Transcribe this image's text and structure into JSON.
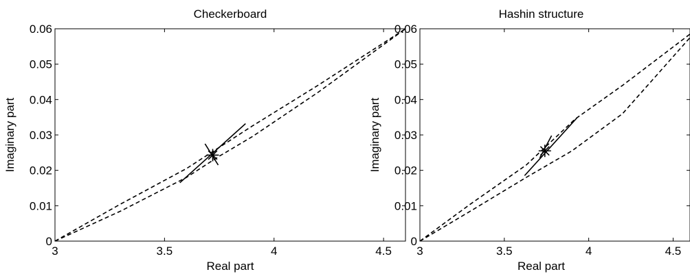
{
  "chart_data": [
    {
      "type": "line",
      "title": "Checkerboard",
      "xlabel": "Real part",
      "ylabel": "Imaginary part",
      "xlim": [
        3,
        4.6
      ],
      "ylim": [
        0,
        0.06
      ],
      "xticks": [
        "3",
        "3.5",
        "4",
        "4.5"
      ],
      "yticks": [
        "0",
        "0.01",
        "0.02",
        "0.03",
        "0.04",
        "0.05",
        "0.06"
      ],
      "grid": false,
      "series": [
        {
          "style": "dashed",
          "x": [
            3.0,
            3.3,
            3.6,
            3.75,
            3.9,
            4.2,
            4.6
          ],
          "y": [
            0.0,
            0.0085,
            0.018,
            0.024,
            0.0295,
            0.042,
            0.06
          ]
        },
        {
          "style": "dashed",
          "x": [
            3.0,
            3.3,
            3.6,
            3.75,
            3.9,
            4.2,
            4.6
          ],
          "y": [
            0.0,
            0.0105,
            0.0205,
            0.0265,
            0.0325,
            0.044,
            0.06
          ]
        },
        {
          "style": "solid",
          "x": [
            3.57,
            3.87
          ],
          "y": [
            0.0165,
            0.0332
          ]
        },
        {
          "style": "solid",
          "x": [
            3.685,
            3.745
          ],
          "y": [
            0.0275,
            0.0215
          ]
        }
      ],
      "marker": {
        "symbol": "asterisk",
        "x": 3.72,
        "y": 0.0243
      }
    },
    {
      "type": "line",
      "title": "Hashin structure",
      "xlabel": "Real part",
      "ylabel": "Imaginary part",
      "xlim": [
        3,
        4.6
      ],
      "ylim": [
        0,
        0.06
      ],
      "xticks": [
        "3",
        "3.5",
        "4",
        "4.5"
      ],
      "yticks": [
        "0",
        "0.01",
        "0.02",
        "0.03",
        "0.04",
        "0.05",
        "0.06"
      ],
      "grid": false,
      "series": [
        {
          "style": "dashed",
          "x": [
            3.0,
            3.3,
            3.63,
            3.9,
            4.2,
            4.6
          ],
          "y": [
            0.0,
            0.0085,
            0.018,
            0.0255,
            0.036,
            0.0575
          ]
        },
        {
          "style": "dashed",
          "x": [
            3.0,
            3.3,
            3.63,
            3.92,
            4.2,
            4.6
          ],
          "y": [
            0.0,
            0.0105,
            0.0215,
            0.0345,
            0.044,
            0.0585
          ]
        },
        {
          "style": "solid",
          "x": [
            3.62,
            3.93
          ],
          "y": [
            0.0185,
            0.0348
          ]
        },
        {
          "style": "solid",
          "x": [
            3.71,
            3.78
          ],
          "y": [
            0.0235,
            0.0298
          ]
        }
      ],
      "marker": {
        "symbol": "asterisk",
        "x": 3.74,
        "y": 0.0255
      }
    }
  ]
}
